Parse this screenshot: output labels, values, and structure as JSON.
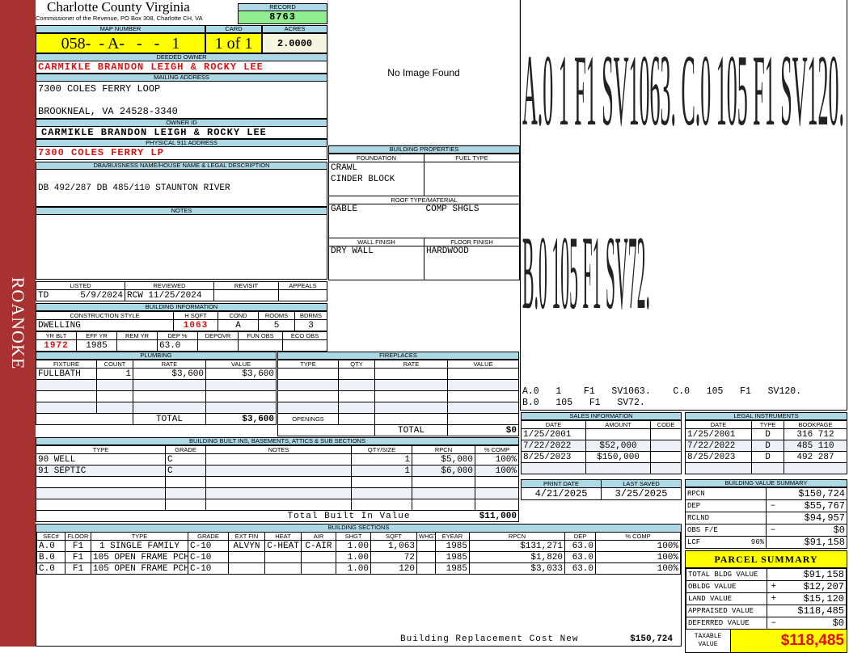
{
  "side_label": "ROANOKE",
  "header": {
    "title": "Charlotte County Virginia",
    "subtitle": "Commissioner of the Revenue, PO Box 308, Charlotte CH, VA",
    "record_label": "RECORD",
    "record": "8763"
  },
  "parcel": {
    "map_label": "MAP NUMBER",
    "map_number": "058-  - A-   -   -   1",
    "card_label": "CARD",
    "card": "1 of 1",
    "acres_label": "ACRES",
    "acres": "2.0000"
  },
  "deeded_owner": {
    "label": "DEEDED OWNER",
    "value": "CARMIKLE BRANDON LEIGH & ROCKY LEE"
  },
  "mailing": {
    "label": "MAILING ADDRESS",
    "line1": "7300 COLES FERRY LOOP",
    "line2": "BROOKNEAL, VA 24528-3340"
  },
  "owner_id": {
    "label": "OWNER ID",
    "value": "CARMIKLE BRANDON LEIGH & ROCKY LEE"
  },
  "physical": {
    "label": "PHYSICAL 911 ADDRESS",
    "value": "7300 COLES FERRY LP"
  },
  "dba": {
    "label": "DBA/BUISNESS NAME/HOUSE NAME & LEGAL DESCRIPTION",
    "value": "DB 492/287 DB 485/110 STAUNTON RIVER"
  },
  "notes": {
    "label": "NOTES"
  },
  "image": {
    "text": "No Image Found"
  },
  "listing": {
    "listed_label": "LISTED",
    "listed_by": "TD",
    "listed_date": "5/9/2024",
    "reviewed_label": "REVIEWED",
    "reviewed_by": "RCW",
    "reviewed_date": "11/25/2024",
    "revisit_label": "REVISIT",
    "appeals_label": "APPEALS"
  },
  "building_info": {
    "label": "BUILDING INFORMATION",
    "h1": [
      "CONSTRUCTION STYLE",
      "H SQFT",
      "COND",
      "ROOMS",
      "BDRMS"
    ],
    "v1": [
      "DWELLING",
      "1063",
      "A",
      "5",
      "3"
    ],
    "h2": [
      "YR BLT",
      "EFF YR",
      "REM YR",
      "DEP %",
      "DEPOVR",
      "FUN OBS",
      "ECO OBS"
    ],
    "v2": [
      "1972",
      "1985",
      "",
      "63.0",
      "",
      "",
      ""
    ]
  },
  "building_properties": {
    "label": "BUILDING PROPERTIES",
    "foundation_label": "FOUNDATION",
    "foundation": [
      "CRAWL",
      "CINDER BLOCK"
    ],
    "fuel_label": "FUEL TYPE",
    "roof_label": "ROOF TYPE/MATERIAL",
    "roof_type": "GABLE",
    "roof_material": "COMP SHGLS",
    "wall_label": "WALL FINISH",
    "wall": "DRY WALL",
    "floor_label": "FLOOR FINISH",
    "floor": "HARDWOOD"
  },
  "plumbing": {
    "label": "PLUMBING",
    "headers": [
      "FIXTURE",
      "COUNT",
      "RATE",
      "VALUE"
    ],
    "rows": [
      {
        "fixture": "FULLBATH",
        "count": "1",
        "rate": "$3,600",
        "value": "$3,600"
      }
    ],
    "total_label": "TOTAL",
    "total": "$3,600"
  },
  "fireplaces": {
    "label": "FIREPLACES",
    "headers": [
      "TYPE",
      "QTY",
      "RATE",
      "VALUE"
    ],
    "openings_label": "OPENINGS",
    "total_label": "TOTAL",
    "total": "$0"
  },
  "builtins": {
    "label": "BUILDING BUILT INS, BASEMENTS, ATTICS & SUB SECTIONS",
    "headers": [
      "TYPE",
      "GRADE",
      "NOTES",
      "QTY/SIZE",
      "RPCN",
      "% COMP"
    ],
    "rows": [
      {
        "type": "90 WELL",
        "grade": "C",
        "notes": "",
        "qty": "1",
        "rpcn": "$5,000",
        "comp": "100%"
      },
      {
        "type": "91 SEPTIC",
        "grade": "C",
        "notes": "",
        "qty": "1",
        "rpcn": "$6,000",
        "comp": "100%"
      }
    ],
    "total_label": "Total Built In Value",
    "total": "$11,000"
  },
  "sections": {
    "label": "BUILDING SECTIONS",
    "headers": [
      "SEC#",
      "FLOOR",
      "TYPE",
      "GRADE",
      "EXT FIN",
      "HEAT",
      "AIR",
      "SHGT",
      "SQFT",
      "WHGT",
      "EYEAR",
      "RPCN",
      "DEP",
      "% COMP"
    ],
    "rows": [
      {
        "sec": "A.0",
        "floor": "F1",
        "type": "1 SINGLE FAMILY",
        "grade": "C-10",
        "ext": "ALVYN",
        "heat": "C-HEAT",
        "air": "C-AIR",
        "shgt": "1.00",
        "sqft": "1,063",
        "whgt": "",
        "eyear": "1985",
        "rpcn": "$131,271",
        "dep": "63.0",
        "comp": "100%"
      },
      {
        "sec": "B.0",
        "floor": "F1",
        "type": "105 OPEN FRAME PCH",
        "grade": "C-10",
        "ext": "",
        "heat": "",
        "air": "",
        "shgt": "1.00",
        "sqft": "72",
        "whgt": "",
        "eyear": "1985",
        "rpcn": "$1,820",
        "dep": "63.0",
        "comp": "100%"
      },
      {
        "sec": "C.0",
        "floor": "F1",
        "type": "105 OPEN FRAME PCH",
        "grade": "C-10",
        "ext": "",
        "heat": "",
        "air": "",
        "shgt": "1.00",
        "sqft": "120",
        "whgt": "",
        "eyear": "1985",
        "rpcn": "$3,033",
        "dep": "63.0",
        "comp": "100%"
      }
    ],
    "replacement_label": "Building Replacement Cost New",
    "replacement": "$150,724"
  },
  "sketch": {
    "big1": "A.0  1   F1  SV1063.   C.0  105  F1  SV120.",
    "big2": "B.0  105  F1  SV72.",
    "legend1": "A.0   1    F1   SV1063.    C.0   105   F1   SV120.",
    "legend2": "B.0   105   F1   SV72."
  },
  "sales": {
    "label": "SALES INFORMATION",
    "headers": [
      "DATE",
      "AMOUNT",
      "CODE"
    ],
    "rows": [
      {
        "date": "1/25/2001",
        "amount": "",
        "code": ""
      },
      {
        "date": "7/22/2022",
        "amount": "$52,000",
        "code": ""
      },
      {
        "date": "8/25/2023",
        "amount": "$150,000",
        "code": ""
      }
    ]
  },
  "legal": {
    "label": "LEGAL INSTRUMENTS",
    "headers": [
      "DATE",
      "TYPE",
      "BOOKPAGE"
    ],
    "rows": [
      {
        "date": "1/25/2001",
        "type": "D",
        "book": "316 712"
      },
      {
        "date": "7/22/2022",
        "type": "D",
        "book": "485 110"
      },
      {
        "date": "8/25/2023",
        "type": "D",
        "book": "492 287"
      }
    ]
  },
  "dates": {
    "print_label": "PRINT DATE",
    "print": "4/21/2025",
    "saved_label": "LAST SAVED",
    "saved": "3/25/2025"
  },
  "value_summary": {
    "label": "BUILDING VALUE SUMMARY",
    "rows": [
      {
        "name": "RPCN",
        "sign": "",
        "value": "$150,724"
      },
      {
        "name": "DEP",
        "sign": "–",
        "value": "$55,767"
      },
      {
        "name": "RCLND",
        "sign": "",
        "value": "$94,957"
      },
      {
        "name": "OBS F/E",
        "sign": "–",
        "value": "$0"
      },
      {
        "name": "LCF",
        "pct": "96%",
        "sign": "",
        "value": "$91,158"
      }
    ]
  },
  "parcel_summary": {
    "label": "PARCEL SUMMARY",
    "rows": [
      {
        "name": "TOTAL BLDG VALUE",
        "sign": "",
        "value": "$91,158"
      },
      {
        "name": "OBLDG VALUE",
        "sign": "+",
        "value": "$12,207"
      },
      {
        "name": "LAND VALUE",
        "sign": "+",
        "value": "$15,120"
      },
      {
        "name": "APPRAISED VALUE",
        "sign": "",
        "value": "$118,485"
      },
      {
        "name": "DEFERRED VALUE",
        "sign": "–",
        "value": "$0"
      }
    ],
    "taxable_label": "TAXABLE VALUE",
    "taxable": "$118,485"
  },
  "colors": {
    "header": "#add8e6",
    "highlight": "#ffff00",
    "record": "#90ee90",
    "accent_red": "#e01010",
    "sidebar": "#a83232"
  }
}
